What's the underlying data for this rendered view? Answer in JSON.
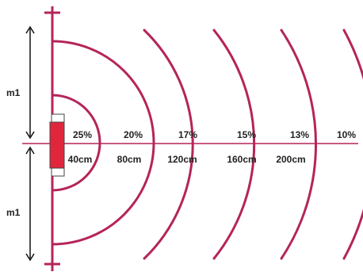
{
  "colors": {
    "arc": "#b5245a",
    "sensor_fill": "#e0263c",
    "wall": "#b5245a",
    "arrow": "#111111",
    "text": "#222222"
  },
  "labels": {
    "m1_top": "m1",
    "m1_bottom": "m1"
  },
  "zones": [
    {
      "percent": "25%",
      "distance": "40cm"
    },
    {
      "percent": "20%",
      "distance": "80cm"
    },
    {
      "percent": "17%",
      "distance": "120cm"
    },
    {
      "percent": "15%",
      "distance": "160cm"
    },
    {
      "percent": "13%",
      "distance": "200cm"
    },
    {
      "percent": "10%",
      "distance": ""
    }
  ]
}
